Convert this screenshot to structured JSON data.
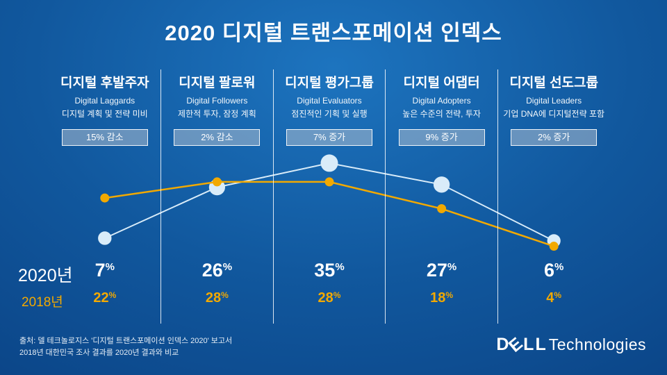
{
  "title": "2020 디지털 트랜스포메이션 인덱스",
  "symbols": {
    "percent": "%"
  },
  "columns": [
    {
      "title": "디지털 후발주자",
      "subtitle_en": "Digital Laggards",
      "desc": "디지털 계획 및 전략 미비",
      "badge": "15% 감소",
      "value_2020": "7",
      "value_2018": "22"
    },
    {
      "title": "디지털 팔로워",
      "subtitle_en": "Digital Followers",
      "desc": "제한적 투자, 잠정 계획",
      "badge": "2% 감소",
      "value_2020": "26",
      "value_2018": "28"
    },
    {
      "title": "디지털 평가그룹",
      "subtitle_en": "Digital Evaluators",
      "desc": "점진적인 기획 및 실행",
      "badge": "7% 증가",
      "value_2020": "35",
      "value_2018": "28"
    },
    {
      "title": "디지털 어댑터",
      "subtitle_en": "Digital Adopters",
      "desc": "높은 수준의 전략, 투자",
      "badge": "9% 증가",
      "value_2020": "27",
      "value_2018": "18"
    },
    {
      "title": "디지털 선도그룹",
      "subtitle_en": "Digital Leaders",
      "desc": "기업 DNA에 디지털전략 포함",
      "badge": "2% 증가",
      "value_2020": "6",
      "value_2018": "4"
    }
  ],
  "row_labels": {
    "y2020": "2020년",
    "y2018": "2018년"
  },
  "footer": {
    "line1": "출처: 델 테크놀로지스 '디지털 트랜스포메이션 인덱스 2020' 보고서",
    "line2": "2018년 대한민국 조사 결과를 2020년 결과와 비교"
  },
  "logo": {
    "letters": [
      "D",
      "E",
      "L",
      "L"
    ],
    "suffix": "Technologies"
  },
  "colors": {
    "accent_2018": "#F2A900",
    "series_2020": "#d9ecf9",
    "background_top": "#1d74bf",
    "background_bottom": "#0a4183"
  },
  "chart_data": {
    "type": "line",
    "title": "2020 디지털 트랜스포메이션 인덱스",
    "categories": [
      "디지털 후발주자",
      "디지털 팔로워",
      "디지털 평가그룹",
      "디지털 어댑터",
      "디지털 선도그룹"
    ],
    "series": [
      {
        "name": "2020년",
        "values": [
          7,
          26,
          35,
          27,
          6
        ],
        "color": "#d9ecf9",
        "marker": "large-circle"
      },
      {
        "name": "2018년",
        "values": [
          22,
          28,
          28,
          18,
          4
        ],
        "color": "#F2A900",
        "marker": "small-circle"
      }
    ],
    "unit": "%",
    "ylim": [
      0,
      40
    ],
    "grid": false,
    "legend": "row labels at left of value rows"
  }
}
